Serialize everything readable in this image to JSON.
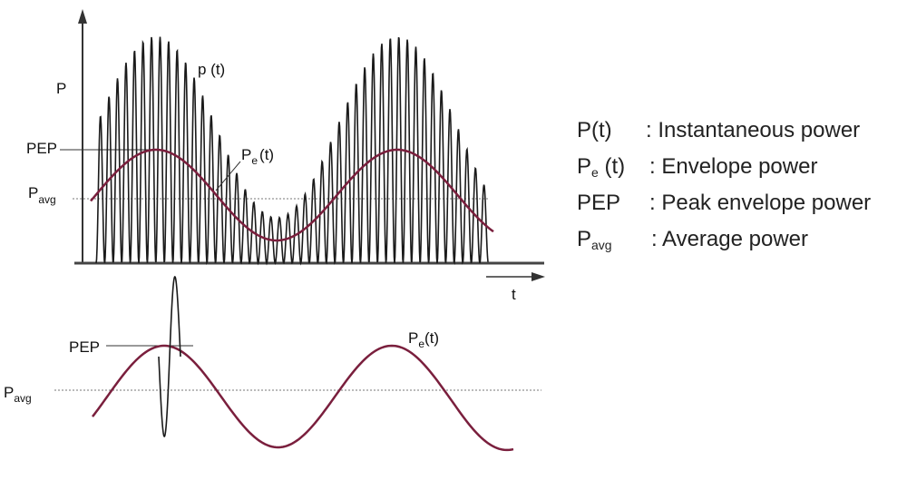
{
  "upper_plot": {
    "y_axis_label": "P",
    "x_axis_label": "t",
    "curve_label_instantaneous": "p (t)",
    "curve_label_envelope_main": "P",
    "curve_label_envelope_sub": "e",
    "curve_label_envelope_arg": "(t)",
    "pep_label": "PEP",
    "pavg_main": "P",
    "pavg_sub": "avg"
  },
  "lower_plot": {
    "pep_label": "PEP",
    "pavg_main": "P",
    "pavg_sub": "avg",
    "curve_label_envelope_main": "P",
    "curve_label_envelope_sub": "e",
    "curve_label_envelope_arg": "(t)"
  },
  "legend": [
    {
      "symbol_main": "P(t)",
      "symbol_sub": "",
      "symbol_suffix": "",
      "description": ": Instantaneous power"
    },
    {
      "symbol_main": "P",
      "symbol_sub": "e",
      "symbol_suffix": " (t)",
      "description": ": Envelope power"
    },
    {
      "symbol_main": "PEP",
      "symbol_sub": "",
      "symbol_suffix": "",
      "description": ": Peak envelope power"
    },
    {
      "symbol_main": "P",
      "symbol_sub": "avg",
      "symbol_suffix": "",
      "description": ": Average power"
    }
  ],
  "colors": {
    "envelope": "#7a1f3d",
    "signal": "#1a1a1a",
    "axis": "#333333",
    "dotted": "#777777"
  }
}
